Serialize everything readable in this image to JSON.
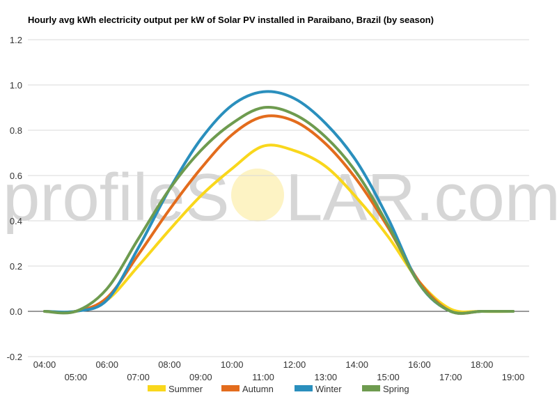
{
  "chart_data": {
    "type": "line",
    "title": "Hourly avg kWh electricity output per kW of Solar PV installed in Paraibano, Brazil (by season)",
    "xlabel": "",
    "ylabel": "",
    "x": [
      "04:00",
      "05:00",
      "06:00",
      "07:00",
      "08:00",
      "09:00",
      "10:00",
      "11:00",
      "12:00",
      "13:00",
      "14:00",
      "15:00",
      "16:00",
      "17:00",
      "18:00",
      "19:00"
    ],
    "ylim": [
      -0.2,
      1.2
    ],
    "yticks": [
      -0.2,
      0.0,
      0.2,
      0.4,
      0.6,
      0.8,
      1.0,
      1.2
    ],
    "ytick_labels": [
      "-0.2",
      "0.0",
      "0.2",
      "0.4",
      "0.6",
      "0.8",
      "1.0",
      "1.2"
    ],
    "grid": true,
    "legend_position": "bottom",
    "series": [
      {
        "name": "Summer",
        "color": "#f9d71c",
        "values": [
          0.0,
          0.0,
          0.05,
          0.2,
          0.36,
          0.51,
          0.63,
          0.73,
          0.71,
          0.64,
          0.5,
          0.33,
          0.13,
          0.01,
          0.0,
          0.0
        ]
      },
      {
        "name": "Autumn",
        "color": "#e36c1d",
        "values": [
          0.0,
          0.0,
          0.06,
          0.25,
          0.45,
          0.63,
          0.78,
          0.86,
          0.84,
          0.74,
          0.58,
          0.37,
          0.13,
          0.0,
          0.0,
          0.0
        ]
      },
      {
        "name": "Winter",
        "color": "#2a8fbd",
        "values": [
          0.0,
          0.0,
          0.05,
          0.28,
          0.54,
          0.76,
          0.91,
          0.97,
          0.94,
          0.83,
          0.66,
          0.41,
          0.12,
          0.0,
          0.0,
          0.0
        ]
      },
      {
        "name": "Spring",
        "color": "#6e9b4f",
        "values": [
          0.0,
          0.0,
          0.1,
          0.32,
          0.54,
          0.71,
          0.83,
          0.9,
          0.87,
          0.77,
          0.61,
          0.38,
          0.12,
          0.0,
          0.0,
          0.0
        ]
      }
    ]
  },
  "watermark": {
    "text_left": "profileS",
    "text_right": "LAR.com",
    "sun_color": "#fdf3c4"
  }
}
